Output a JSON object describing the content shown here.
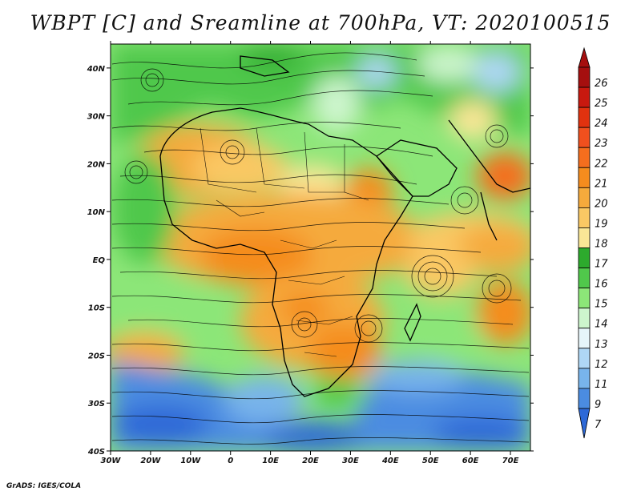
{
  "title": "WBPT [C] and Sreamline at 700hPa, VT: 2020100515",
  "footer": "GrADS: IGES/COLA",
  "lon_labels": [
    "30W",
    "20W",
    "10W",
    "0",
    "10E",
    "20E",
    "30E",
    "40E",
    "50E",
    "60E",
    "70E"
  ],
  "lat_labels": [
    "40N",
    "30N",
    "20N",
    "10N",
    "EQ",
    "10S",
    "20S",
    "30S",
    "40S"
  ],
  "colorbar": {
    "labels": [
      "26",
      "25",
      "24",
      "23",
      "22",
      "21",
      "20",
      "19",
      "18",
      "17",
      "16",
      "15",
      "14",
      "13",
      "12",
      "11",
      "9",
      "7"
    ],
    "colors": [
      "#a50f0f",
      "#c8190f",
      "#e1320f",
      "#f0501e",
      "#f56e1e",
      "#f58c1e",
      "#f5aa3c",
      "#fac864",
      "#fae696",
      "#2daa2d",
      "#50c84b",
      "#8ce678",
      "#cdf5cd",
      "#e6f5fa",
      "#afd7f5",
      "#78b4eb",
      "#4b8ce1",
      "#2d69d7"
    ]
  },
  "map": {
    "lon_range": [
      -30,
      75
    ],
    "lat_range": [
      -40,
      45
    ],
    "variable": "WBPT",
    "units": "C",
    "level": "700hPa",
    "valid_time": "2020100515"
  }
}
